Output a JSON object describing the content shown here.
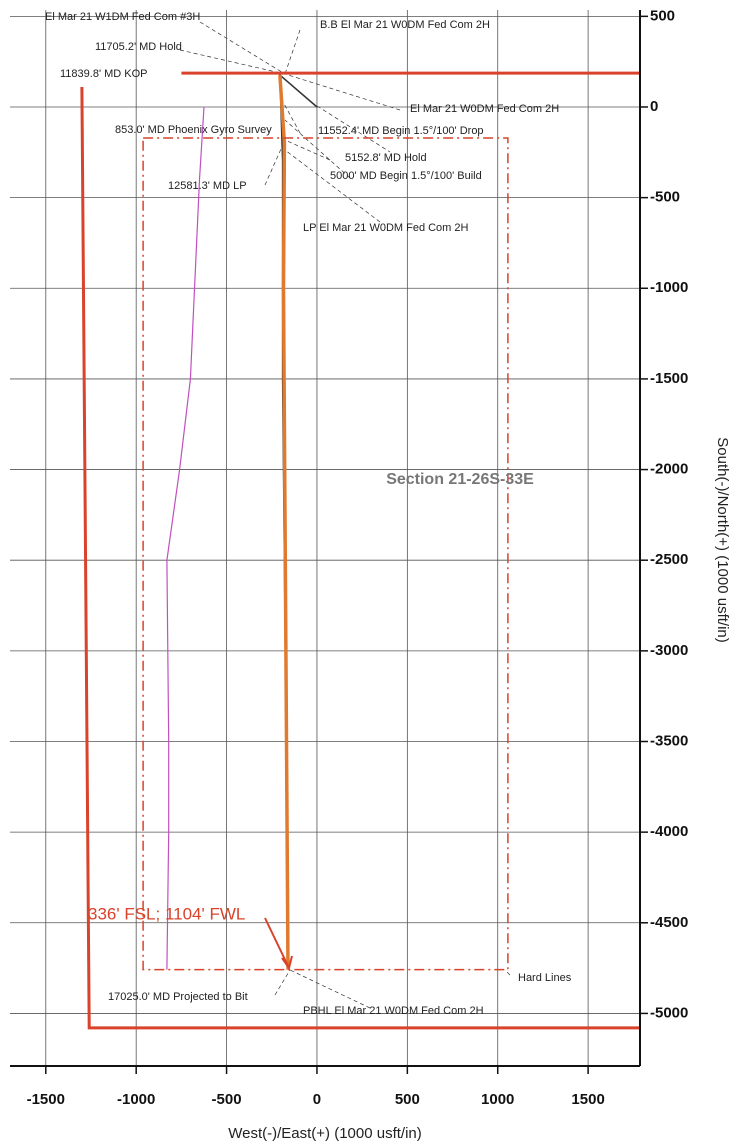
{
  "chart_data": {
    "type": "line",
    "x_label": "West(-)/East(+) (1000 usft/in)",
    "y_label": "South(-)/North(+) (1000 usft/in)",
    "xlim": [
      -1698,
      1787
    ],
    "xticks": [
      -1500,
      -1000,
      -500,
      0,
      500,
      1000,
      1500
    ],
    "ylim": [
      -5290,
      535
    ],
    "yticks": [
      500,
      0,
      -500,
      -1000,
      -1500,
      -2000,
      -2500,
      -3000,
      -3500,
      -4000,
      -4500,
      -5000
    ],
    "grid": true,
    "section_label": "Section 21-26S-33E",
    "target_label": "336' FSL; 1104' FWL",
    "annotations": [
      "El Mar 21 W1DM Fed Com #3H",
      "B.B El Mar 21 W0DM Fed Com 2H",
      "11705.2' MD Hold",
      "11839.8' MD KOP",
      "El Mar 21 W0DM Fed Com 2H",
      "853.0' MD Phoenix Gyro Survey",
      "11552.4' MD Begin 1.5°/100' Drop",
      "5152.8' MD Hold",
      "5000' MD Begin 1.5°/100' Build",
      "12581.3' MD LP",
      "LP El Mar 21 W0DM Fed Com 2H",
      "Hard Lines",
      "17025.0' MD Projected to Bit",
      "PBHL El Mar 21 W0DM Fed Com 2H"
    ],
    "series": [
      {
        "color": "#d9432b",
        "width": 3,
        "dash": "solid",
        "x": [
          -750,
          1787,
          null,
          -1300,
          -1260,
          1787
        ],
        "values": [
          187,
          187,
          null,
          110,
          -5080,
          -5080
        ]
      },
      {
        "color": "#d9432b",
        "width": 1.5,
        "dash": "dashdot",
        "x": [
          -962,
          1056,
          1056,
          -962,
          -962
        ],
        "values": [
          -171,
          -171,
          -4758,
          -4758,
          -171
        ]
      },
      {
        "color": "#c050c0",
        "width": 1.2,
        "dash": "solid",
        "x": [
          -625,
          -650,
          -700,
          -760,
          -830,
          -820,
          -820,
          -830
        ],
        "values": [
          0,
          -400,
          -1500,
          -2000,
          -2500,
          -3500,
          -4000,
          -4758
        ]
      },
      {
        "color": "#e07a2e",
        "width": 3.5,
        "dash": "solid",
        "x": [
          -205,
          -180,
          -185,
          -175,
          -165,
          -160
        ],
        "values": [
          176,
          -200,
          -1000,
          -2500,
          -4000,
          -4758
        ]
      },
      {
        "color": "#333333",
        "width": 1.5,
        "dash": "solid",
        "x": [
          0,
          -205,
          -190,
          -190,
          -175,
          -165,
          -160
        ],
        "values": [
          0,
          176,
          -300,
          -1500,
          -3000,
          -4200,
          -4758
        ]
      }
    ]
  }
}
